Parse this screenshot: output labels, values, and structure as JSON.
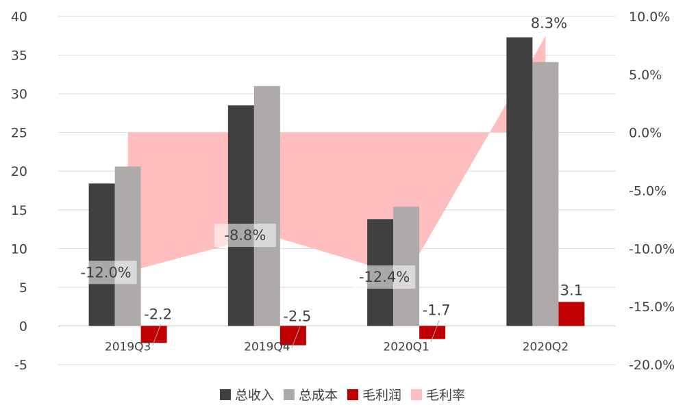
{
  "chart_data": {
    "type": "bar+area",
    "categories": [
      "2019Q3",
      "2019Q4",
      "2020Q1",
      "2020Q2"
    ],
    "series": [
      {
        "name": "总收入",
        "kind": "bar",
        "axis": "left",
        "color": "#404040",
        "values": [
          18.4,
          28.5,
          13.8,
          37.3
        ]
      },
      {
        "name": "总成本",
        "kind": "bar",
        "axis": "left",
        "color": "#AEAAAA",
        "values": [
          20.6,
          31.0,
          15.4,
          34.1
        ]
      },
      {
        "name": "毛利润",
        "kind": "bar",
        "axis": "left",
        "color": "#C00000",
        "values": [
          -2.2,
          -2.5,
          -1.7,
          3.1
        ],
        "labels": [
          "-2.2",
          "-2.5",
          "-1.7",
          "3.1"
        ]
      },
      {
        "name": "毛利率",
        "kind": "area",
        "axis": "right",
        "color": "#FFBDBD",
        "values": [
          -12.0,
          -8.8,
          -12.4,
          8.3
        ],
        "labels": [
          "-12.0%",
          "-8.8%",
          "-12.4%",
          "8.3%"
        ]
      }
    ],
    "left_axis": {
      "min": -5,
      "max": 40,
      "step": 5,
      "ticks": [
        "-5",
        "0",
        "5",
        "10",
        "15",
        "20",
        "25",
        "30",
        "35",
        "40"
      ]
    },
    "right_axis": {
      "min": -20,
      "max": 10,
      "step": 5,
      "ticks": [
        "-20.0%",
        "-15.0%",
        "-10.0%",
        "-5.0%",
        "0.0%",
        "5.0%",
        "10.0%"
      ]
    },
    "grid": true,
    "legend_position": "bottom",
    "title": "",
    "xlabel": "",
    "ylabel": ""
  },
  "legend": [
    {
      "label": "总收入",
      "color": "#404040"
    },
    {
      "label": "总成本",
      "color": "#AEAAAA"
    },
    {
      "label": "毛利润",
      "color": "#C00000"
    },
    {
      "label": "毛利率",
      "color": "#FFBDBD"
    }
  ]
}
